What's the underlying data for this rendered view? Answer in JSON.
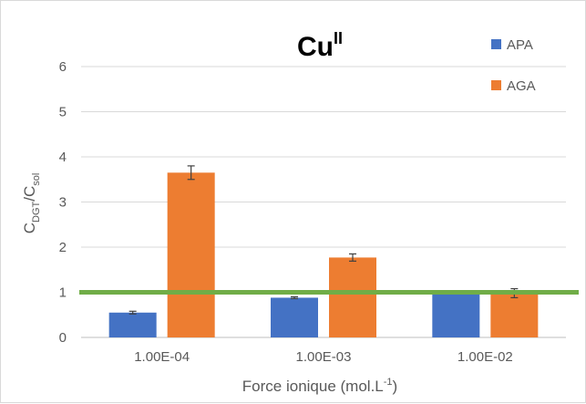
{
  "chart_data": {
    "type": "bar",
    "title": {
      "base": "Cu",
      "sup": "II"
    },
    "xlabel": {
      "text": "Force ionique (mol.L",
      "sup": "-1",
      "suffix": ")"
    },
    "ylabel": {
      "base1": "C",
      "sub1": "DGT",
      "mid": "/C",
      "sub2": "sol"
    },
    "categories": [
      "1.00E-04",
      "1.00E-03",
      "1.00E-02"
    ],
    "ylim": [
      0,
      6
    ],
    "yticks": [
      0,
      1,
      2,
      3,
      4,
      5,
      6
    ],
    "grid": true,
    "legend_position": "top-right",
    "series": [
      {
        "name": "APA",
        "color": "#4472c4",
        "values": [
          0.55,
          0.88,
          1.0
        ],
        "errors": [
          0.03,
          0.02,
          0.01
        ]
      },
      {
        "name": "AGA",
        "color": "#ed7d31",
        "values": [
          3.65,
          1.77,
          0.98
        ],
        "errors": [
          0.15,
          0.08,
          0.1
        ]
      }
    ],
    "reference_line": {
      "value": 1.0,
      "color": "#70ad47"
    }
  }
}
